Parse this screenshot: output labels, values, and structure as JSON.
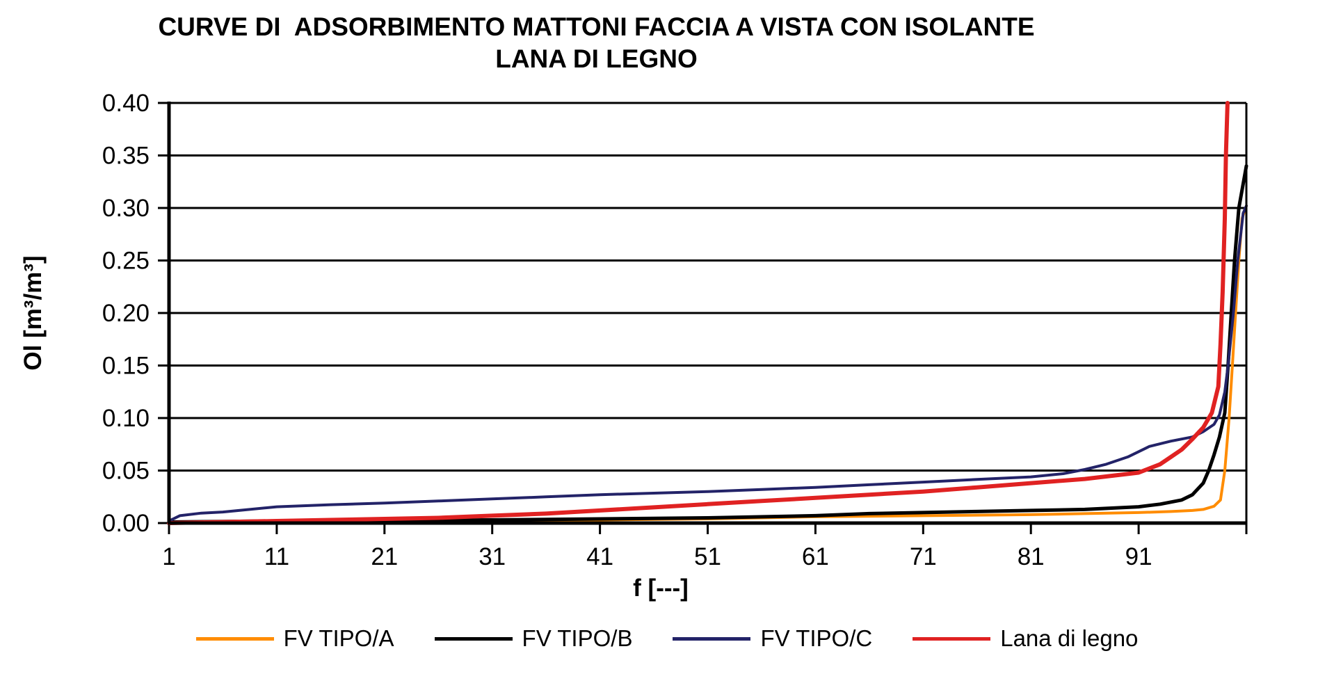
{
  "title": {
    "line1": "CURVE DI  ADSORBIMENTO MATTONI FACCIA A VISTA CON ISOLANTE",
    "line2": "LANA DI LEGNO"
  },
  "chart_data": {
    "type": "line",
    "title": "CURVE DI ADSORBIMENTO MATTONI FACCIA A VISTA CON ISOLANTE LANA DI LEGNO",
    "xlabel": "f [---]",
    "ylabel": "Ol [m³/m³]",
    "xlim": [
      1,
      101
    ],
    "ylim": [
      0,
      0.4
    ],
    "x_ticks": [
      1,
      11,
      21,
      31,
      41,
      51,
      61,
      71,
      81,
      91,
      101
    ],
    "x_tick_labels": [
      "1",
      "11",
      "21",
      "31",
      "41",
      "51",
      "61",
      "71",
      "81",
      "91",
      ""
    ],
    "y_ticks": [
      0.0,
      0.05,
      0.1,
      0.15,
      0.2,
      0.25,
      0.3,
      0.35,
      0.4
    ],
    "y_tick_labels": [
      "0.00",
      "0.05",
      "0.10",
      "0.15",
      "0.20",
      "0.25",
      "0.30",
      "0.35",
      "0.40"
    ],
    "grid": "horizontal",
    "plot_border": true,
    "legend_position": "bottom",
    "series": [
      {
        "name": "FV TIPO/A",
        "color": "#FF8C00",
        "stroke_width": 4,
        "points": [
          [
            1,
            0.0
          ],
          [
            6,
            0.001
          ],
          [
            11,
            0.002
          ],
          [
            16,
            0.002
          ],
          [
            21,
            0.003
          ],
          [
            31,
            0.003
          ],
          [
            41,
            0.003
          ],
          [
            51,
            0.004
          ],
          [
            56,
            0.005
          ],
          [
            61,
            0.006
          ],
          [
            71,
            0.007
          ],
          [
            81,
            0.008
          ],
          [
            86,
            0.009
          ],
          [
            91,
            0.01
          ],
          [
            94,
            0.011
          ],
          [
            96,
            0.012
          ],
          [
            97,
            0.013
          ],
          [
            98,
            0.016
          ],
          [
            98.6,
            0.022
          ],
          [
            99,
            0.05
          ],
          [
            99.4,
            0.1
          ],
          [
            99.7,
            0.15
          ],
          [
            100,
            0.2
          ],
          [
            100.3,
            0.25
          ],
          [
            100.6,
            0.29
          ],
          [
            101,
            0.302
          ]
        ]
      },
      {
        "name": "FV TIPO/B",
        "color": "#000000",
        "stroke_width": 5,
        "points": [
          [
            1,
            0.001
          ],
          [
            11,
            0.002
          ],
          [
            21,
            0.0025
          ],
          [
            31,
            0.003
          ],
          [
            41,
            0.004
          ],
          [
            51,
            0.005
          ],
          [
            61,
            0.007
          ],
          [
            66,
            0.009
          ],
          [
            71,
            0.01
          ],
          [
            76,
            0.011
          ],
          [
            81,
            0.012
          ],
          [
            86,
            0.013
          ],
          [
            91,
            0.0155
          ],
          [
            93,
            0.018
          ],
          [
            95,
            0.022
          ],
          [
            96,
            0.027
          ],
          [
            97,
            0.038
          ],
          [
            97.5,
            0.05
          ],
          [
            98,
            0.065
          ],
          [
            98.5,
            0.082
          ],
          [
            99,
            0.105
          ],
          [
            99.3,
            0.15
          ],
          [
            99.6,
            0.2
          ],
          [
            99.9,
            0.25
          ],
          [
            100.3,
            0.3
          ],
          [
            101,
            0.34
          ]
        ]
      },
      {
        "name": "FV TIPO/C",
        "color": "#232368",
        "stroke_width": 4,
        "points": [
          [
            1,
            0.002
          ],
          [
            2,
            0.007
          ],
          [
            4,
            0.0095
          ],
          [
            6,
            0.0105
          ],
          [
            11,
            0.0155
          ],
          [
            16,
            0.0175
          ],
          [
            21,
            0.019
          ],
          [
            26,
            0.021
          ],
          [
            31,
            0.023
          ],
          [
            36,
            0.025
          ],
          [
            41,
            0.027
          ],
          [
            46,
            0.0285
          ],
          [
            51,
            0.03
          ],
          [
            56,
            0.032
          ],
          [
            61,
            0.034
          ],
          [
            66,
            0.0365
          ],
          [
            71,
            0.039
          ],
          [
            76,
            0.0415
          ],
          [
            81,
            0.044
          ],
          [
            84,
            0.047
          ],
          [
            86,
            0.051
          ],
          [
            88,
            0.056
          ],
          [
            90,
            0.063
          ],
          [
            92,
            0.073
          ],
          [
            94,
            0.078
          ],
          [
            96,
            0.082
          ],
          [
            97,
            0.087
          ],
          [
            98,
            0.094
          ],
          [
            98.5,
            0.103
          ],
          [
            99,
            0.125
          ],
          [
            99.3,
            0.15
          ],
          [
            99.8,
            0.2
          ],
          [
            100.2,
            0.25
          ],
          [
            100.7,
            0.295
          ],
          [
            101,
            0.302
          ]
        ]
      },
      {
        "name": "Lana di legno",
        "color": "#E02222",
        "stroke_width": 6,
        "points": [
          [
            1,
            0.0
          ],
          [
            6,
            0.001
          ],
          [
            11,
            0.002
          ],
          [
            16,
            0.003
          ],
          [
            21,
            0.004
          ],
          [
            26,
            0.005
          ],
          [
            31,
            0.007
          ],
          [
            36,
            0.009
          ],
          [
            41,
            0.012
          ],
          [
            46,
            0.015
          ],
          [
            51,
            0.018
          ],
          [
            56,
            0.021
          ],
          [
            61,
            0.024
          ],
          [
            66,
            0.027
          ],
          [
            71,
            0.03
          ],
          [
            76,
            0.034
          ],
          [
            81,
            0.038
          ],
          [
            86,
            0.042
          ],
          [
            91,
            0.048
          ],
          [
            93,
            0.056
          ],
          [
            94,
            0.063
          ],
          [
            95,
            0.07
          ],
          [
            96,
            0.08
          ],
          [
            97,
            0.091
          ],
          [
            97.8,
            0.105
          ],
          [
            98.4,
            0.13
          ],
          [
            98.6,
            0.17
          ],
          [
            98.8,
            0.22
          ],
          [
            99.0,
            0.29
          ],
          [
            99.1,
            0.35
          ],
          [
            99.25,
            0.4
          ]
        ]
      }
    ]
  }
}
